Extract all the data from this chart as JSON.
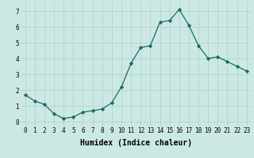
{
  "x": [
    0,
    1,
    2,
    3,
    4,
    5,
    6,
    7,
    8,
    9,
    10,
    11,
    12,
    13,
    14,
    15,
    16,
    17,
    18,
    19,
    20,
    21,
    22,
    23
  ],
  "y": [
    1.7,
    1.3,
    1.1,
    0.5,
    0.2,
    0.3,
    0.6,
    0.7,
    0.8,
    1.2,
    2.2,
    3.7,
    4.7,
    4.8,
    6.3,
    6.4,
    7.1,
    6.1,
    4.8,
    4.0,
    4.1,
    3.8,
    3.5,
    3.2
  ],
  "xlabel": "Humidex (Indice chaleur)",
  "ylim": [
    -0.3,
    7.6
  ],
  "xlim": [
    -0.5,
    23.5
  ],
  "line_color": "#1a6b5e",
  "marker_color": "#1a6b5e",
  "bg_color": "#cce8e5",
  "grid_color": "#aad0cc",
  "tick_label_fontsize": 5.5,
  "xlabel_fontsize": 7.0
}
